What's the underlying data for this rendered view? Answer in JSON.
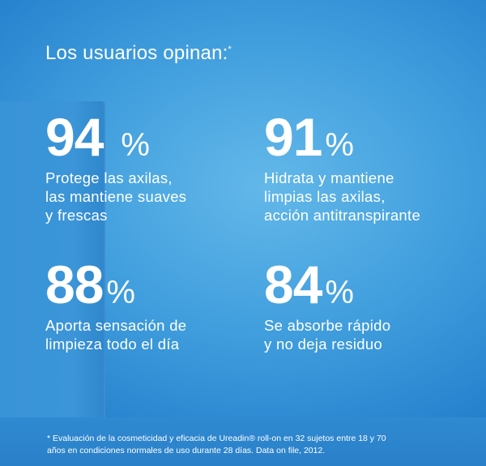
{
  "title": "Los usuarios opinan:",
  "title_mark": "*",
  "stats": [
    {
      "value": "94",
      "unit": "%",
      "description": [
        "Protege las axilas,",
        "las mantiene suaves",
        "y frescas"
      ]
    },
    {
      "value": "91",
      "unit": "%",
      "description": [
        "Hidrata y mantiene",
        "limpias las axilas,",
        "acción antitranspirante"
      ]
    },
    {
      "value": "88",
      "unit": "%",
      "description": [
        "Aporta sensación de",
        "limpieza todo el día"
      ]
    },
    {
      "value": "84",
      "unit": "%",
      "description": [
        "Se absorbe rápido",
        "y no deja residuo"
      ]
    }
  ],
  "footnote": {
    "line1": "* Evaluación de la cosmeticidad y eficacia de Ureadin® roll-on en 32 sujetos entre 18 y 70",
    "line2": "años en condiciones normales de uso durante 28 días. Data on file, 2012."
  },
  "colors": {
    "background": "#3f9ddd",
    "text": "#ffffff"
  }
}
